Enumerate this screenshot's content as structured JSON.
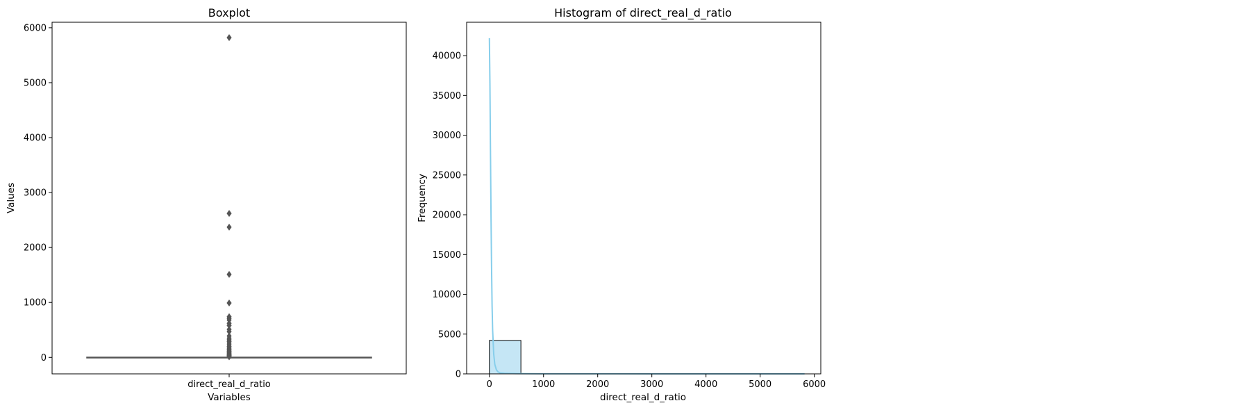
{
  "chart_data": [
    {
      "type": "box",
      "title": "Boxplot",
      "xlabel": "Variables",
      "ylabel": "Values",
      "categories": [
        "direct_real_d_ratio"
      ],
      "ylim": [
        -300,
        6100
      ],
      "yticks": [
        0,
        1000,
        2000,
        3000,
        4000,
        5000,
        6000
      ],
      "box": {
        "q1": 0,
        "median": 1,
        "q3": 3,
        "whisker_low": 0,
        "whisker_high": 7
      },
      "outliers": [
        5820,
        2620,
        2370,
        1510,
        990,
        740,
        710,
        680,
        620,
        580,
        510,
        470,
        390,
        350,
        320,
        290,
        260,
        230,
        200,
        170,
        150,
        130,
        110,
        95,
        80,
        65,
        50,
        40,
        30,
        20,
        10
      ],
      "colors": {
        "box_line": "#555555",
        "outlier": "#555555"
      }
    },
    {
      "type": "histogram",
      "title": "Histogram of direct_real_d_ratio",
      "xlabel": "direct_real_d_ratio",
      "ylabel": "Frequency",
      "xlim": [
        -420,
        6120
      ],
      "ylim": [
        0,
        44200
      ],
      "xticks": [
        0,
        1000,
        2000,
        3000,
        4000,
        5000,
        6000
      ],
      "yticks": [
        0,
        5000,
        10000,
        15000,
        20000,
        25000,
        30000,
        35000,
        40000
      ],
      "bins": [
        {
          "x0": 0,
          "x1": 582,
          "count": 4200
        },
        {
          "x0": 582,
          "x1": 1164,
          "count": 8
        },
        {
          "x0": 1164,
          "x1": 1746,
          "count": 1
        },
        {
          "x0": 1746,
          "x1": 2328,
          "count": 0
        },
        {
          "x0": 2328,
          "x1": 2910,
          "count": 2
        },
        {
          "x0": 2910,
          "x1": 3492,
          "count": 0
        },
        {
          "x0": 3492,
          "x1": 4074,
          "count": 0
        },
        {
          "x0": 4074,
          "x1": 4656,
          "count": 0
        },
        {
          "x0": 4656,
          "x1": 5238,
          "count": 0
        },
        {
          "x0": 5238,
          "x1": 5820,
          "count": 1
        }
      ],
      "kde": {
        "x": [
          0,
          10,
          20,
          30,
          40,
          50,
          60,
          80,
          100,
          130,
          160,
          200,
          300,
          500,
          1000,
          2000,
          3000,
          4000,
          5000,
          5820
        ],
        "y": [
          42200,
          36500,
          28000,
          20000,
          13500,
          8500,
          5500,
          2500,
          1200,
          500,
          250,
          120,
          60,
          30,
          15,
          8,
          5,
          3,
          2,
          1
        ]
      },
      "colors": {
        "bar_fill": "#c5e6f5",
        "bar_edge": "#000000",
        "kde": "#87ceeb"
      }
    }
  ]
}
